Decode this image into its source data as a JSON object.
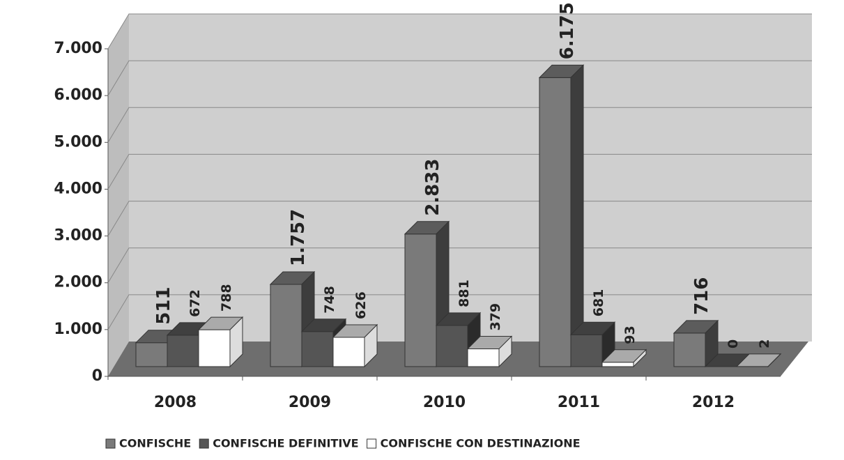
{
  "chart_data": {
    "type": "bar3d",
    "categories": [
      "2008",
      "2009",
      "2010",
      "2011",
      "2012"
    ],
    "series": [
      {
        "name": "CONFISCHE",
        "color": "#7a7a7a",
        "values": [
          511,
          1757,
          2833,
          6175,
          716
        ],
        "value_labels": [
          "511",
          "1.757",
          "2.833",
          "6.175",
          "716"
        ]
      },
      {
        "name": "CONFISCHE DEFINITIVE",
        "color": "#555555",
        "values": [
          672,
          748,
          881,
          681,
          0
        ]
      },
      {
        "name": "CONFISCHE CON DESTINAZIONE",
        "color": "#ffffff",
        "values": [
          788,
          626,
          379,
          93,
          2
        ]
      }
    ],
    "ylim": [
      0,
      7000
    ],
    "yticks": [
      0,
      {
        "value": 1000,
        "label": "1.000"
      },
      {
        "value": 2000,
        "label": "2.000"
      },
      {
        "value": 3000,
        "label": "3.000"
      },
      {
        "value": 4000,
        "label": "4.000"
      },
      {
        "value": 5000,
        "label": "5.000"
      },
      {
        "value": 6000,
        "label": "6.000"
      },
      {
        "value": 7000,
        "label": "7.000"
      }
    ],
    "grid": true,
    "legend": "bottom"
  }
}
